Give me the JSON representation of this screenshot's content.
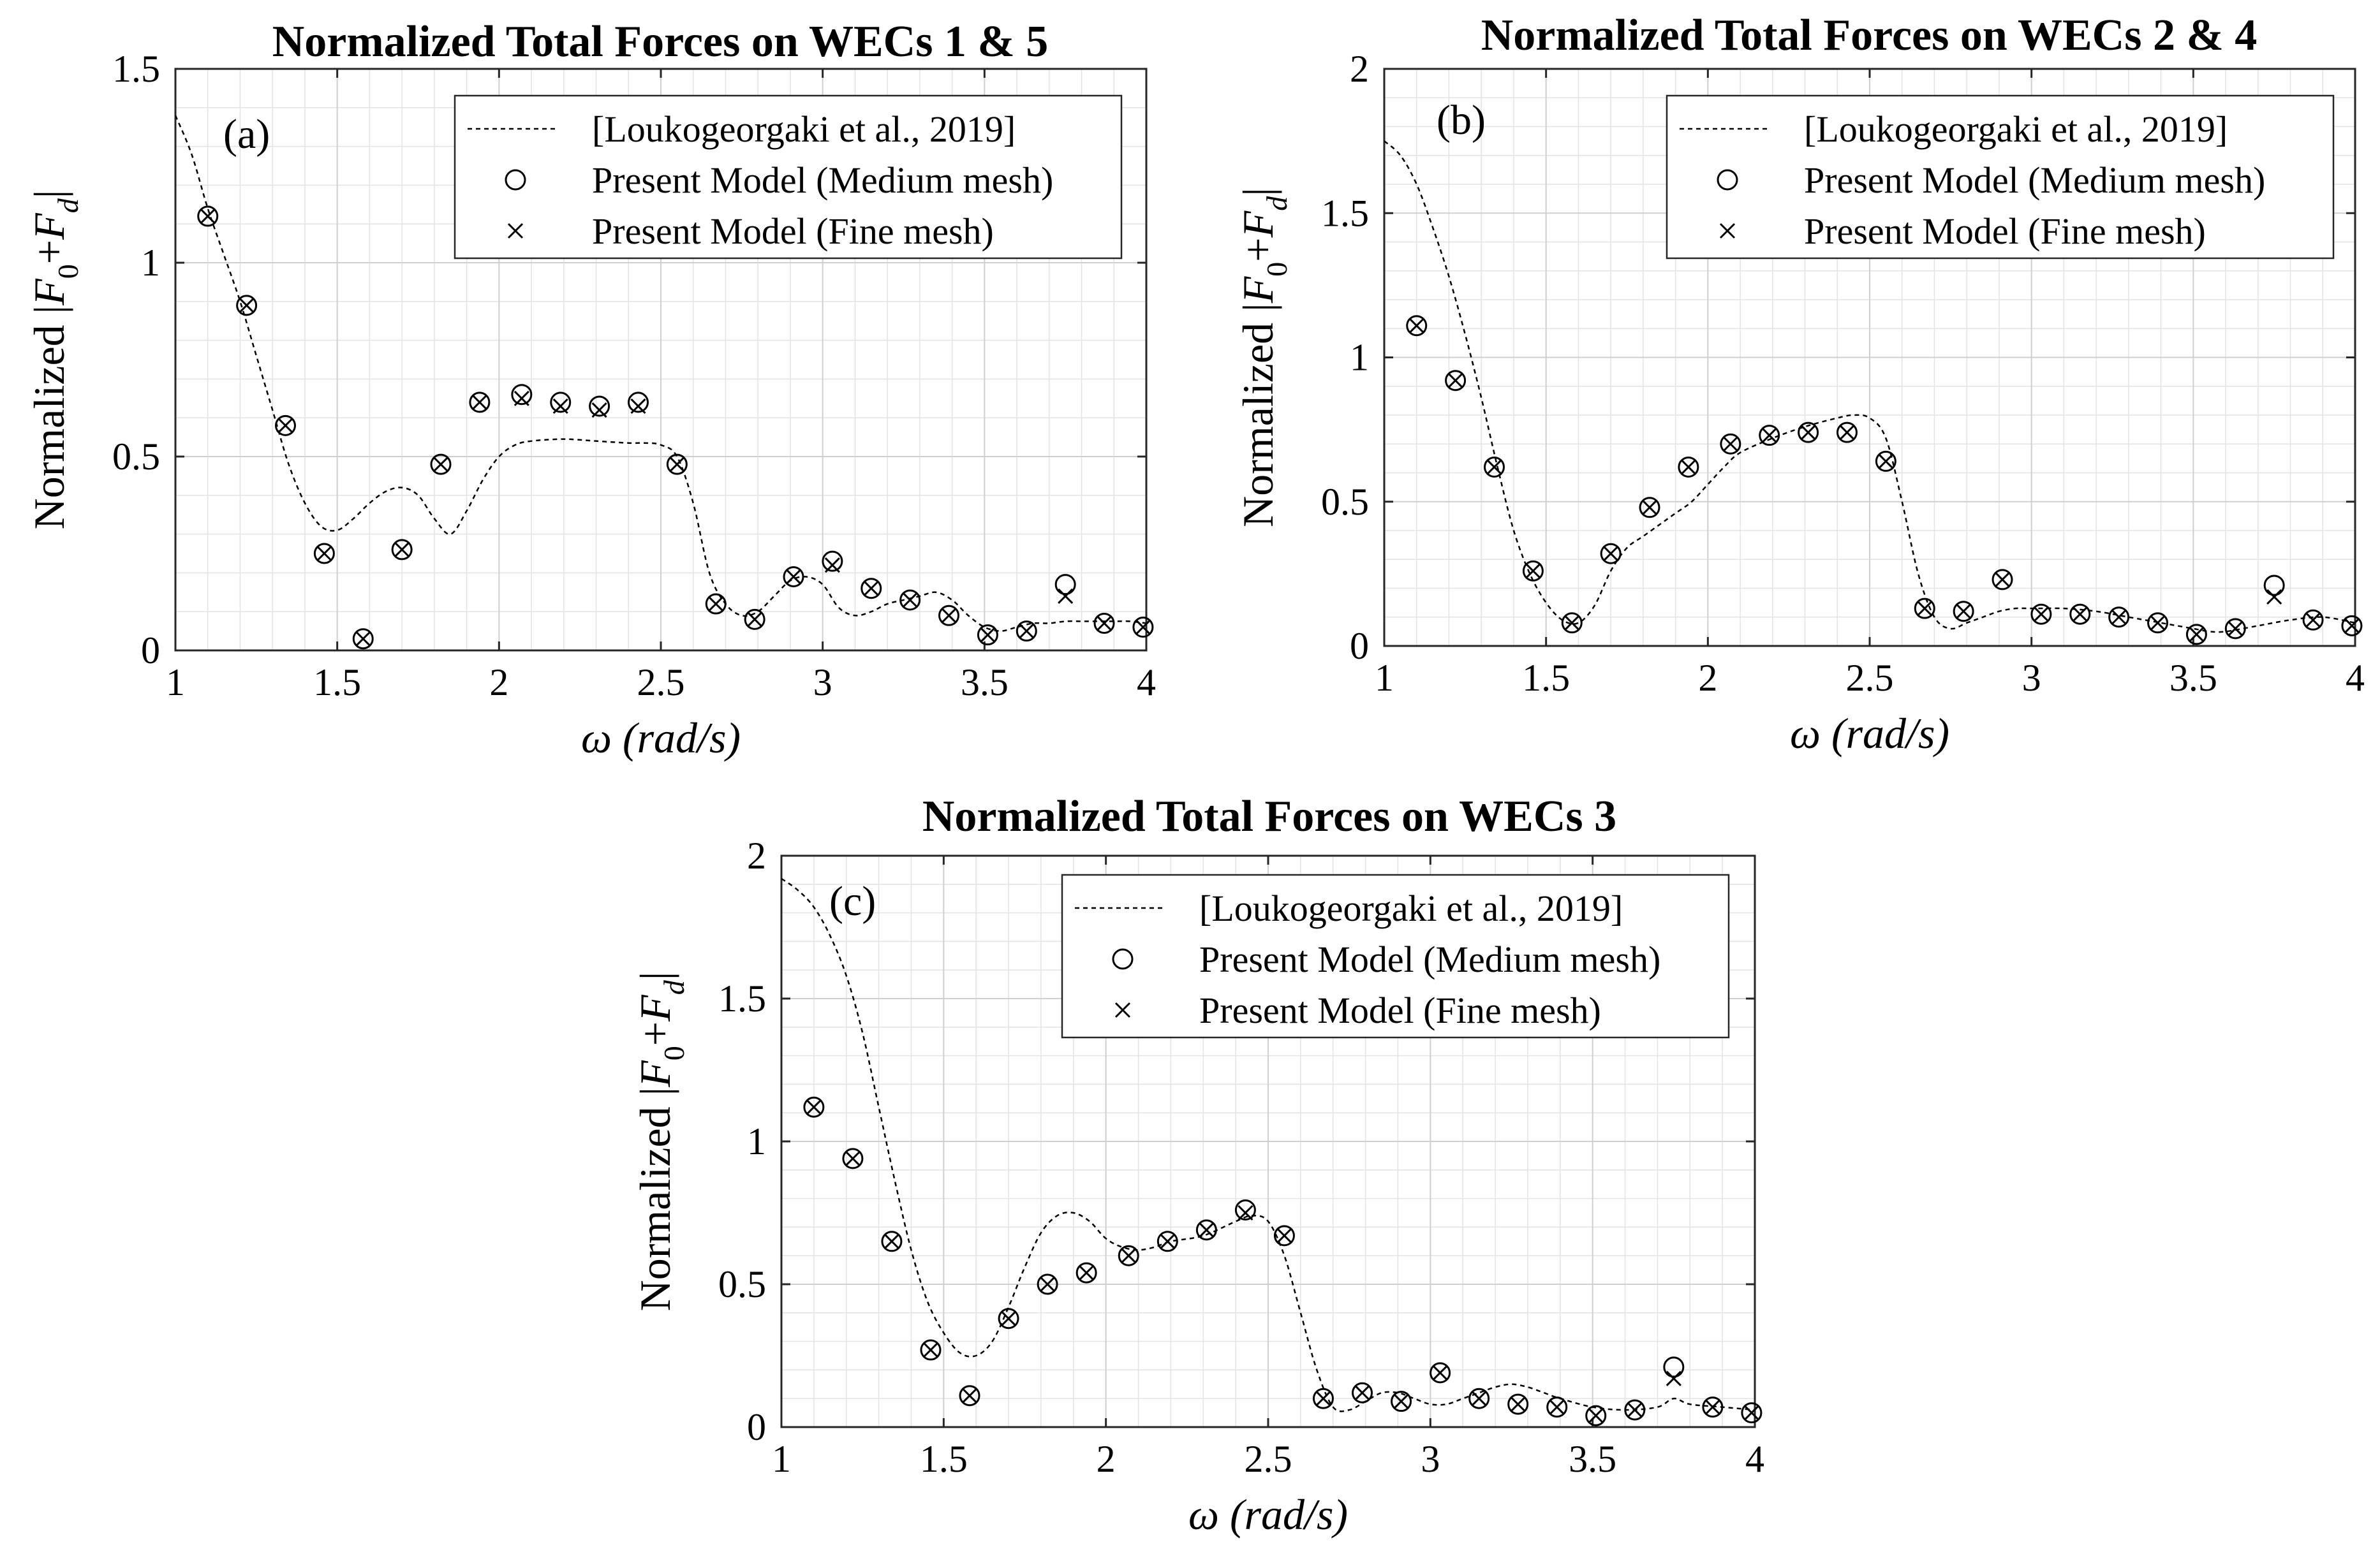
{
  "figure": {
    "ylabel_prefix": "Normalized ",
    "ylabel_bar": "|",
    "ylabel_F": "F",
    "ylabel_sub0": "0",
    "ylabel_plus": "+",
    "ylabel_subd": "d",
    "xlabel_omega": "ω",
    "xlabel_units": "(rad/s)"
  },
  "chart_data": [
    {
      "type": "line",
      "panel": "(a)",
      "title": "Normalized Total Forces on WECs 1 & 5",
      "xlabel": "ω (rad/s)",
      "ylabel": "Normalized |F0+Fd|",
      "xlim": [
        1,
        4
      ],
      "ylim": [
        0,
        1.5
      ],
      "xticks": [
        "1",
        "1.5",
        "2",
        "2.5",
        "3",
        "3.5",
        "4"
      ],
      "yticks": [
        "0",
        "0.5",
        "1",
        "1.5"
      ],
      "grid": true,
      "legend": [
        "[Loukogeorgaki et al., 2019]",
        "Present Model (Medium mesh)",
        "Present Model (Fine mesh)"
      ],
      "legend_position": "top-right",
      "series": [
        {
          "name": "[Loukogeorgaki et al., 2019]",
          "style": "dashed-line",
          "x": [
            1.0,
            1.05,
            1.1,
            1.15,
            1.2,
            1.25,
            1.3,
            1.35,
            1.4,
            1.45,
            1.5,
            1.55,
            1.6,
            1.65,
            1.7,
            1.75,
            1.8,
            1.85,
            1.9,
            1.95,
            2.0,
            2.05,
            2.1,
            2.2,
            2.3,
            2.4,
            2.45,
            2.5,
            2.55,
            2.6,
            2.65,
            2.7,
            2.75,
            2.8,
            2.85,
            2.9,
            2.95,
            3.0,
            3.05,
            3.1,
            3.15,
            3.2,
            3.25,
            3.3,
            3.35,
            3.4,
            3.45,
            3.5,
            3.55,
            3.6,
            3.65,
            3.7,
            3.75,
            3.8,
            3.85,
            3.9,
            3.95,
            4.0
          ],
          "y": [
            1.38,
            1.28,
            1.14,
            1.02,
            0.9,
            0.76,
            0.62,
            0.48,
            0.38,
            0.32,
            0.31,
            0.34,
            0.38,
            0.41,
            0.42,
            0.4,
            0.34,
            0.3,
            0.36,
            0.44,
            0.5,
            0.53,
            0.54,
            0.545,
            0.54,
            0.535,
            0.535,
            0.53,
            0.5,
            0.38,
            0.2,
            0.12,
            0.09,
            0.1,
            0.14,
            0.18,
            0.19,
            0.17,
            0.11,
            0.09,
            0.1,
            0.12,
            0.13,
            0.14,
            0.15,
            0.13,
            0.09,
            0.06,
            0.05,
            0.06,
            0.07,
            0.07,
            0.075,
            0.075,
            0.075,
            0.075,
            0.075,
            0.07
          ]
        },
        {
          "name": "Present Model (Medium mesh)",
          "style": "circle",
          "x": [
            1.1,
            1.22,
            1.34,
            1.46,
            1.58,
            1.7,
            1.82,
            1.94,
            2.07,
            2.19,
            2.31,
            2.43,
            2.55,
            2.67,
            2.79,
            2.91,
            3.03,
            3.15,
            3.27,
            3.39,
            3.51,
            3.63,
            3.75,
            3.87,
            3.99
          ],
          "y": [
            1.12,
            0.89,
            0.58,
            0.25,
            0.03,
            0.26,
            0.48,
            0.64,
            0.66,
            0.64,
            0.63,
            0.64,
            0.48,
            0.12,
            0.08,
            0.19,
            0.23,
            0.16,
            0.13,
            0.09,
            0.04,
            0.05,
            0.17,
            0.07,
            0.06
          ]
        },
        {
          "name": "Present Model (Fine mesh)",
          "style": "cross",
          "x": [
            1.1,
            1.22,
            1.34,
            1.46,
            1.58,
            1.7,
            1.82,
            1.94,
            2.07,
            2.19,
            2.31,
            2.43,
            2.55,
            2.67,
            2.79,
            2.91,
            3.03,
            3.15,
            3.27,
            3.39,
            3.51,
            3.63,
            3.75,
            3.87,
            3.99
          ],
          "y": [
            1.12,
            0.89,
            0.58,
            0.25,
            0.03,
            0.26,
            0.48,
            0.64,
            0.65,
            0.63,
            0.62,
            0.63,
            0.48,
            0.12,
            0.08,
            0.19,
            0.22,
            0.16,
            0.13,
            0.09,
            0.04,
            0.05,
            0.14,
            0.07,
            0.06
          ]
        }
      ]
    },
    {
      "type": "line",
      "panel": "(b)",
      "title": "Normalized Total Forces on WECs 2 & 4",
      "xlabel": "ω (rad/s)",
      "ylabel": "Normalized |F0+Fd|",
      "xlim": [
        1,
        4
      ],
      "ylim": [
        0,
        2
      ],
      "xticks": [
        "1",
        "1.5",
        "2",
        "2.5",
        "3",
        "3.5",
        "4"
      ],
      "yticks": [
        "0",
        "0.5",
        "1",
        "1.5",
        "2"
      ],
      "grid": true,
      "legend": [
        "[Loukogeorgaki et al., 2019]",
        "Present Model (Medium mesh)",
        "Present Model (Fine mesh)"
      ],
      "legend_position": "top-right",
      "series": [
        {
          "name": "[Loukogeorgaki et al., 2019]",
          "style": "dashed-line",
          "x": [
            1.0,
            1.05,
            1.1,
            1.15,
            1.2,
            1.25,
            1.3,
            1.35,
            1.4,
            1.45,
            1.5,
            1.55,
            1.6,
            1.65,
            1.7,
            1.75,
            1.8,
            1.85,
            1.9,
            1.95,
            2.0,
            2.05,
            2.1,
            2.2,
            2.3,
            2.4,
            2.45,
            2.5,
            2.55,
            2.6,
            2.65,
            2.7,
            2.75,
            2.8,
            2.85,
            2.9,
            2.95,
            3.0,
            3.1,
            3.2,
            3.3,
            3.4,
            3.5,
            3.55,
            3.6,
            3.7,
            3.8,
            3.9,
            4.0
          ],
          "y": [
            1.75,
            1.7,
            1.6,
            1.45,
            1.28,
            1.08,
            0.86,
            0.62,
            0.4,
            0.25,
            0.15,
            0.09,
            0.08,
            0.14,
            0.26,
            0.34,
            0.38,
            0.42,
            0.46,
            0.5,
            0.56,
            0.62,
            0.67,
            0.72,
            0.76,
            0.79,
            0.8,
            0.79,
            0.72,
            0.5,
            0.25,
            0.1,
            0.06,
            0.08,
            0.1,
            0.12,
            0.13,
            0.13,
            0.13,
            0.12,
            0.1,
            0.08,
            0.06,
            0.05,
            0.05,
            0.07,
            0.09,
            0.1,
            0.08
          ]
        },
        {
          "name": "Present Model (Medium mesh)",
          "style": "circle",
          "x": [
            1.1,
            1.22,
            1.34,
            1.46,
            1.58,
            1.7,
            1.82,
            1.94,
            2.07,
            2.19,
            2.31,
            2.43,
            2.55,
            2.67,
            2.79,
            2.91,
            3.03,
            3.15,
            3.27,
            3.39,
            3.51,
            3.63,
            3.75,
            3.87,
            3.99
          ],
          "y": [
            1.11,
            0.92,
            0.62,
            0.26,
            0.08,
            0.32,
            0.48,
            0.62,
            0.7,
            0.73,
            0.74,
            0.74,
            0.64,
            0.13,
            0.12,
            0.23,
            0.11,
            0.11,
            0.1,
            0.08,
            0.04,
            0.06,
            0.21,
            0.09,
            0.07
          ]
        },
        {
          "name": "Present Model (Fine mesh)",
          "style": "cross",
          "x": [
            1.1,
            1.22,
            1.34,
            1.46,
            1.58,
            1.7,
            1.82,
            1.94,
            2.07,
            2.19,
            2.31,
            2.43,
            2.55,
            2.67,
            2.79,
            2.91,
            3.03,
            3.15,
            3.27,
            3.39,
            3.51,
            3.63,
            3.75,
            3.87,
            3.99
          ],
          "y": [
            1.11,
            0.92,
            0.62,
            0.26,
            0.08,
            0.32,
            0.48,
            0.62,
            0.7,
            0.73,
            0.74,
            0.74,
            0.64,
            0.13,
            0.12,
            0.23,
            0.11,
            0.11,
            0.1,
            0.08,
            0.04,
            0.06,
            0.17,
            0.09,
            0.07
          ]
        }
      ]
    },
    {
      "type": "line",
      "panel": "(c)",
      "title": "Normalized Total Forces on WECs 3",
      "xlabel": "ω (rad/s)",
      "ylabel": "Normalized |F0+Fd|",
      "xlim": [
        1,
        4
      ],
      "ylim": [
        0,
        2
      ],
      "xticks": [
        "1",
        "1.5",
        "2",
        "2.5",
        "3",
        "3.5",
        "4"
      ],
      "yticks": [
        "0",
        "0.5",
        "1",
        "1.5",
        "2"
      ],
      "grid": true,
      "legend": [
        "[Loukogeorgaki et al., 2019]",
        "Present Model (Medium mesh)",
        "Present Model (Fine mesh)"
      ],
      "legend_position": "top-right",
      "series": [
        {
          "name": "[Loukogeorgaki et al., 2019]",
          "style": "dashed-line",
          "x": [
            1.0,
            1.05,
            1.1,
            1.15,
            1.2,
            1.25,
            1.3,
            1.35,
            1.4,
            1.45,
            1.5,
            1.55,
            1.6,
            1.65,
            1.7,
            1.75,
            1.8,
            1.85,
            1.9,
            1.95,
            2.0,
            2.05,
            2.1,
            2.15,
            2.2,
            2.3,
            2.4,
            2.45,
            2.5,
            2.55,
            2.6,
            2.65,
            2.7,
            2.75,
            2.8,
            2.85,
            2.9,
            2.95,
            3.0,
            3.05,
            3.1,
            3.15,
            3.2,
            3.25,
            3.3,
            3.35,
            3.4,
            3.5,
            3.6,
            3.7,
            3.75,
            3.8,
            3.9,
            4.0
          ],
          "y": [
            1.92,
            1.88,
            1.82,
            1.72,
            1.58,
            1.38,
            1.12,
            0.86,
            0.62,
            0.44,
            0.33,
            0.26,
            0.25,
            0.3,
            0.42,
            0.56,
            0.68,
            0.74,
            0.75,
            0.72,
            0.66,
            0.63,
            0.62,
            0.63,
            0.65,
            0.67,
            0.72,
            0.74,
            0.72,
            0.6,
            0.4,
            0.2,
            0.07,
            0.06,
            0.09,
            0.12,
            0.12,
            0.1,
            0.08,
            0.08,
            0.1,
            0.12,
            0.14,
            0.15,
            0.14,
            0.12,
            0.1,
            0.07,
            0.06,
            0.07,
            0.1,
            0.08,
            0.07,
            0.06
          ]
        },
        {
          "name": "Present Model (Medium mesh)",
          "style": "circle",
          "x": [
            1.1,
            1.22,
            1.34,
            1.46,
            1.58,
            1.7,
            1.82,
            1.94,
            2.07,
            2.19,
            2.31,
            2.43,
            2.55,
            2.67,
            2.79,
            2.91,
            3.03,
            3.15,
            3.27,
            3.39,
            3.51,
            3.63,
            3.75,
            3.87,
            3.99
          ],
          "y": [
            1.12,
            0.94,
            0.65,
            0.27,
            0.11,
            0.38,
            0.5,
            0.54,
            0.6,
            0.65,
            0.69,
            0.76,
            0.67,
            0.1,
            0.12,
            0.09,
            0.19,
            0.1,
            0.08,
            0.07,
            0.04,
            0.06,
            0.21,
            0.07,
            0.05
          ]
        },
        {
          "name": "Present Model (Fine mesh)",
          "style": "cross",
          "x": [
            1.1,
            1.22,
            1.34,
            1.46,
            1.58,
            1.7,
            1.82,
            1.94,
            2.07,
            2.19,
            2.31,
            2.43,
            2.55,
            2.67,
            2.79,
            2.91,
            3.03,
            3.15,
            3.27,
            3.39,
            3.51,
            3.63,
            3.75,
            3.87,
            3.99
          ],
          "y": [
            1.12,
            0.94,
            0.65,
            0.27,
            0.11,
            0.38,
            0.5,
            0.54,
            0.6,
            0.65,
            0.69,
            0.75,
            0.67,
            0.1,
            0.12,
            0.09,
            0.19,
            0.1,
            0.08,
            0.07,
            0.04,
            0.06,
            0.17,
            0.07,
            0.05
          ]
        }
      ]
    }
  ]
}
